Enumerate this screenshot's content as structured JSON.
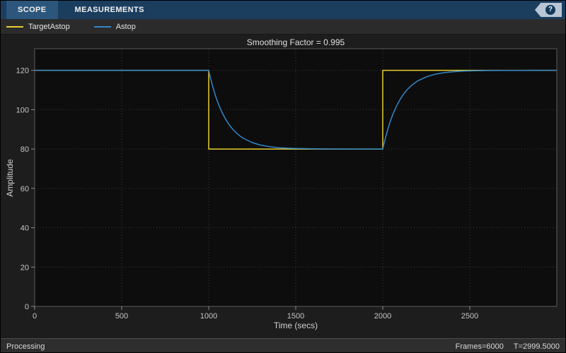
{
  "toolbar": {
    "tabs": [
      {
        "label": "SCOPE"
      },
      {
        "label": "MEASUREMENTS"
      }
    ],
    "help_glyph": "?"
  },
  "statusbar": {
    "left": "Processing",
    "frames": "Frames=6000",
    "time": "T=2999.5000"
  },
  "chart_data": {
    "type": "line",
    "title": "Smoothing Factor = 0.995",
    "xlabel": "Time (secs)",
    "ylabel": "Amplitude",
    "xlim": [
      0,
      3000
    ],
    "ylim": [
      0,
      131
    ],
    "xticks": [
      0,
      500,
      1000,
      1500,
      2000,
      2500
    ],
    "yticks": [
      0,
      20,
      40,
      60,
      80,
      100,
      120
    ],
    "grid": true,
    "legend_position": "top-bar",
    "plot_bg": "#0d0d0d",
    "grid_color": "#3d3d3d",
    "series": [
      {
        "name": "TargetAstop",
        "color": "#e9ce30",
        "points": [
          [
            0,
            120
          ],
          [
            1000,
            120
          ],
          [
            1000,
            80
          ],
          [
            2000,
            80
          ],
          [
            2000,
            120
          ],
          [
            3000,
            120
          ]
        ]
      },
      {
        "name": "Astop",
        "color": "#3287c8",
        "points": [
          [
            0,
            120
          ],
          [
            1000,
            120
          ],
          [
            1010,
            116.19
          ],
          [
            1020,
            112.75
          ],
          [
            1030,
            109.63
          ],
          [
            1040,
            106.81
          ],
          [
            1050,
            104.26
          ],
          [
            1060,
            101.95
          ],
          [
            1080,
            97.97
          ],
          [
            1100,
            94.71
          ],
          [
            1120,
            92.05
          ],
          [
            1140,
            89.86
          ],
          [
            1160,
            88.08
          ],
          [
            1180,
            86.61
          ],
          [
            1200,
            85.41
          ],
          [
            1250,
            83.28
          ],
          [
            1300,
            81.99
          ],
          [
            1350,
            81.21
          ],
          [
            1400,
            80.73
          ],
          [
            1450,
            80.44
          ],
          [
            1500,
            80.27
          ],
          [
            1600,
            80.1
          ],
          [
            1700,
            80.04
          ],
          [
            1800,
            80.01
          ],
          [
            2000,
            80
          ],
          [
            2010,
            83.81
          ],
          [
            2020,
            87.25
          ],
          [
            2030,
            90.37
          ],
          [
            2040,
            93.19
          ],
          [
            2050,
            95.74
          ],
          [
            2060,
            98.05
          ],
          [
            2080,
            102.03
          ],
          [
            2100,
            105.29
          ],
          [
            2120,
            107.95
          ],
          [
            2140,
            110.14
          ],
          [
            2160,
            111.92
          ],
          [
            2180,
            113.39
          ],
          [
            2200,
            114.59
          ],
          [
            2250,
            116.72
          ],
          [
            2300,
            118.01
          ],
          [
            2350,
            118.79
          ],
          [
            2400,
            119.27
          ],
          [
            2450,
            119.56
          ],
          [
            2500,
            119.73
          ],
          [
            2600,
            119.9
          ],
          [
            2700,
            119.96
          ],
          [
            2800,
            119.99
          ],
          [
            3000,
            120
          ]
        ]
      }
    ]
  }
}
